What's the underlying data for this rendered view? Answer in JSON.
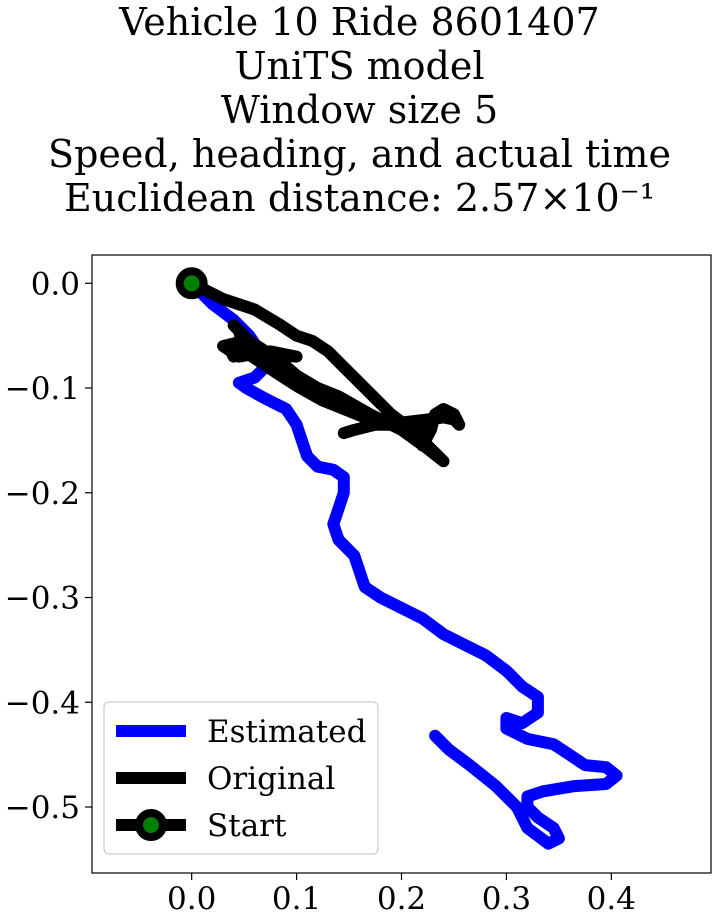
{
  "chart_data": {
    "type": "line",
    "title_lines": [
      "Vehicle 10 Ride 8601407",
      "UniTS model",
      "Window size 5",
      "Speed, heading, and actual time",
      "Euclidean distance: 2.57×10⁻¹"
    ],
    "xlabel": "",
    "ylabel": "",
    "xlim": [
      -0.095,
      0.495
    ],
    "ylim": [
      -0.563,
      0.027
    ],
    "x_ticks": [
      0.0,
      0.1,
      0.2,
      0.3,
      0.4
    ],
    "x_tick_labels": [
      "0.0",
      "0.1",
      "0.2",
      "0.3",
      "0.4"
    ],
    "y_ticks": [
      0.0,
      -0.1,
      -0.2,
      -0.3,
      -0.4,
      -0.5
    ],
    "y_tick_labels": [
      "0.0",
      "−0.1",
      "−0.2",
      "−0.3",
      "−0.4",
      "−0.5"
    ],
    "grid": false,
    "legend_position": "lower-left",
    "series": [
      {
        "name": "Estimated",
        "color": "#0000ff",
        "points": [
          [
            0.0,
            0.0
          ],
          [
            0.02,
            -0.02
          ],
          [
            0.04,
            -0.035
          ],
          [
            0.055,
            -0.05
          ],
          [
            0.065,
            -0.065
          ],
          [
            0.07,
            -0.08
          ],
          [
            0.06,
            -0.09
          ],
          [
            0.045,
            -0.095
          ],
          [
            0.052,
            -0.1
          ],
          [
            0.07,
            -0.11
          ],
          [
            0.09,
            -0.12
          ],
          [
            0.1,
            -0.135
          ],
          [
            0.105,
            -0.15
          ],
          [
            0.11,
            -0.165
          ],
          [
            0.12,
            -0.175
          ],
          [
            0.135,
            -0.178
          ],
          [
            0.145,
            -0.185
          ],
          [
            0.145,
            -0.2
          ],
          [
            0.14,
            -0.215
          ],
          [
            0.135,
            -0.23
          ],
          [
            0.14,
            -0.245
          ],
          [
            0.155,
            -0.26
          ],
          [
            0.16,
            -0.275
          ],
          [
            0.165,
            -0.29
          ],
          [
            0.18,
            -0.3
          ],
          [
            0.2,
            -0.31
          ],
          [
            0.22,
            -0.32
          ],
          [
            0.24,
            -0.335
          ],
          [
            0.26,
            -0.345
          ],
          [
            0.28,
            -0.355
          ],
          [
            0.3,
            -0.37
          ],
          [
            0.315,
            -0.385
          ],
          [
            0.33,
            -0.395
          ],
          [
            0.33,
            -0.41
          ],
          [
            0.315,
            -0.42
          ],
          [
            0.3,
            -0.415
          ],
          [
            0.3,
            -0.425
          ],
          [
            0.32,
            -0.435
          ],
          [
            0.345,
            -0.44
          ],
          [
            0.36,
            -0.45
          ],
          [
            0.375,
            -0.46
          ],
          [
            0.395,
            -0.462
          ],
          [
            0.405,
            -0.47
          ],
          [
            0.395,
            -0.478
          ],
          [
            0.365,
            -0.48
          ],
          [
            0.335,
            -0.485
          ],
          [
            0.32,
            -0.49
          ],
          [
            0.32,
            -0.5
          ],
          [
            0.33,
            -0.51
          ],
          [
            0.345,
            -0.52
          ],
          [
            0.35,
            -0.53
          ],
          [
            0.34,
            -0.535
          ],
          [
            0.32,
            -0.52
          ],
          [
            0.31,
            -0.5
          ],
          [
            0.29,
            -0.48
          ],
          [
            0.265,
            -0.46
          ],
          [
            0.245,
            -0.445
          ],
          [
            0.232,
            -0.432
          ]
        ]
      },
      {
        "name": "Original",
        "color": "#000000",
        "points": [
          [
            0.0,
            0.0
          ],
          [
            0.03,
            -0.015
          ],
          [
            0.06,
            -0.025
          ],
          [
            0.085,
            -0.04
          ],
          [
            0.1,
            -0.05
          ],
          [
            0.115,
            -0.055
          ],
          [
            0.13,
            -0.065
          ],
          [
            0.145,
            -0.08
          ],
          [
            0.16,
            -0.095
          ],
          [
            0.175,
            -0.11
          ],
          [
            0.19,
            -0.125
          ],
          [
            0.21,
            -0.14
          ],
          [
            0.23,
            -0.16
          ],
          [
            0.24,
            -0.17
          ],
          [
            0.225,
            -0.158
          ],
          [
            0.2,
            -0.14
          ],
          [
            0.17,
            -0.125
          ],
          [
            0.14,
            -0.108
          ],
          [
            0.12,
            -0.1
          ],
          [
            0.1,
            -0.088
          ],
          [
            0.085,
            -0.075
          ],
          [
            0.065,
            -0.065
          ],
          [
            0.05,
            -0.05
          ],
          [
            0.04,
            -0.04
          ],
          [
            0.05,
            -0.05
          ],
          [
            0.06,
            -0.06
          ],
          [
            0.04,
            -0.07
          ],
          [
            0.035,
            -0.06
          ],
          [
            0.055,
            -0.055
          ],
          [
            0.075,
            -0.068
          ],
          [
            0.1,
            -0.07
          ],
          [
            0.075,
            -0.065
          ],
          [
            0.045,
            -0.07
          ],
          [
            0.03,
            -0.06
          ],
          [
            0.05,
            -0.055
          ],
          [
            0.045,
            -0.045
          ],
          [
            0.05,
            -0.065
          ],
          [
            0.065,
            -0.075
          ],
          [
            0.08,
            -0.085
          ],
          [
            0.1,
            -0.098
          ],
          [
            0.125,
            -0.112
          ],
          [
            0.15,
            -0.122
          ],
          [
            0.17,
            -0.13
          ],
          [
            0.2,
            -0.133
          ],
          [
            0.225,
            -0.13
          ],
          [
            0.24,
            -0.128
          ],
          [
            0.25,
            -0.13
          ],
          [
            0.255,
            -0.135
          ],
          [
            0.25,
            -0.125
          ],
          [
            0.24,
            -0.12
          ],
          [
            0.232,
            -0.125
          ],
          [
            0.228,
            -0.14
          ],
          [
            0.22,
            -0.155
          ],
          [
            0.22,
            -0.14
          ],
          [
            0.2,
            -0.135
          ],
          [
            0.175,
            -0.135
          ],
          [
            0.155,
            -0.14
          ],
          [
            0.145,
            -0.143
          ]
        ]
      }
    ],
    "start": {
      "name": "Start",
      "x": 0.0,
      "y": 0.0,
      "marker_color": "#008000",
      "edge_color": "#000000"
    }
  }
}
